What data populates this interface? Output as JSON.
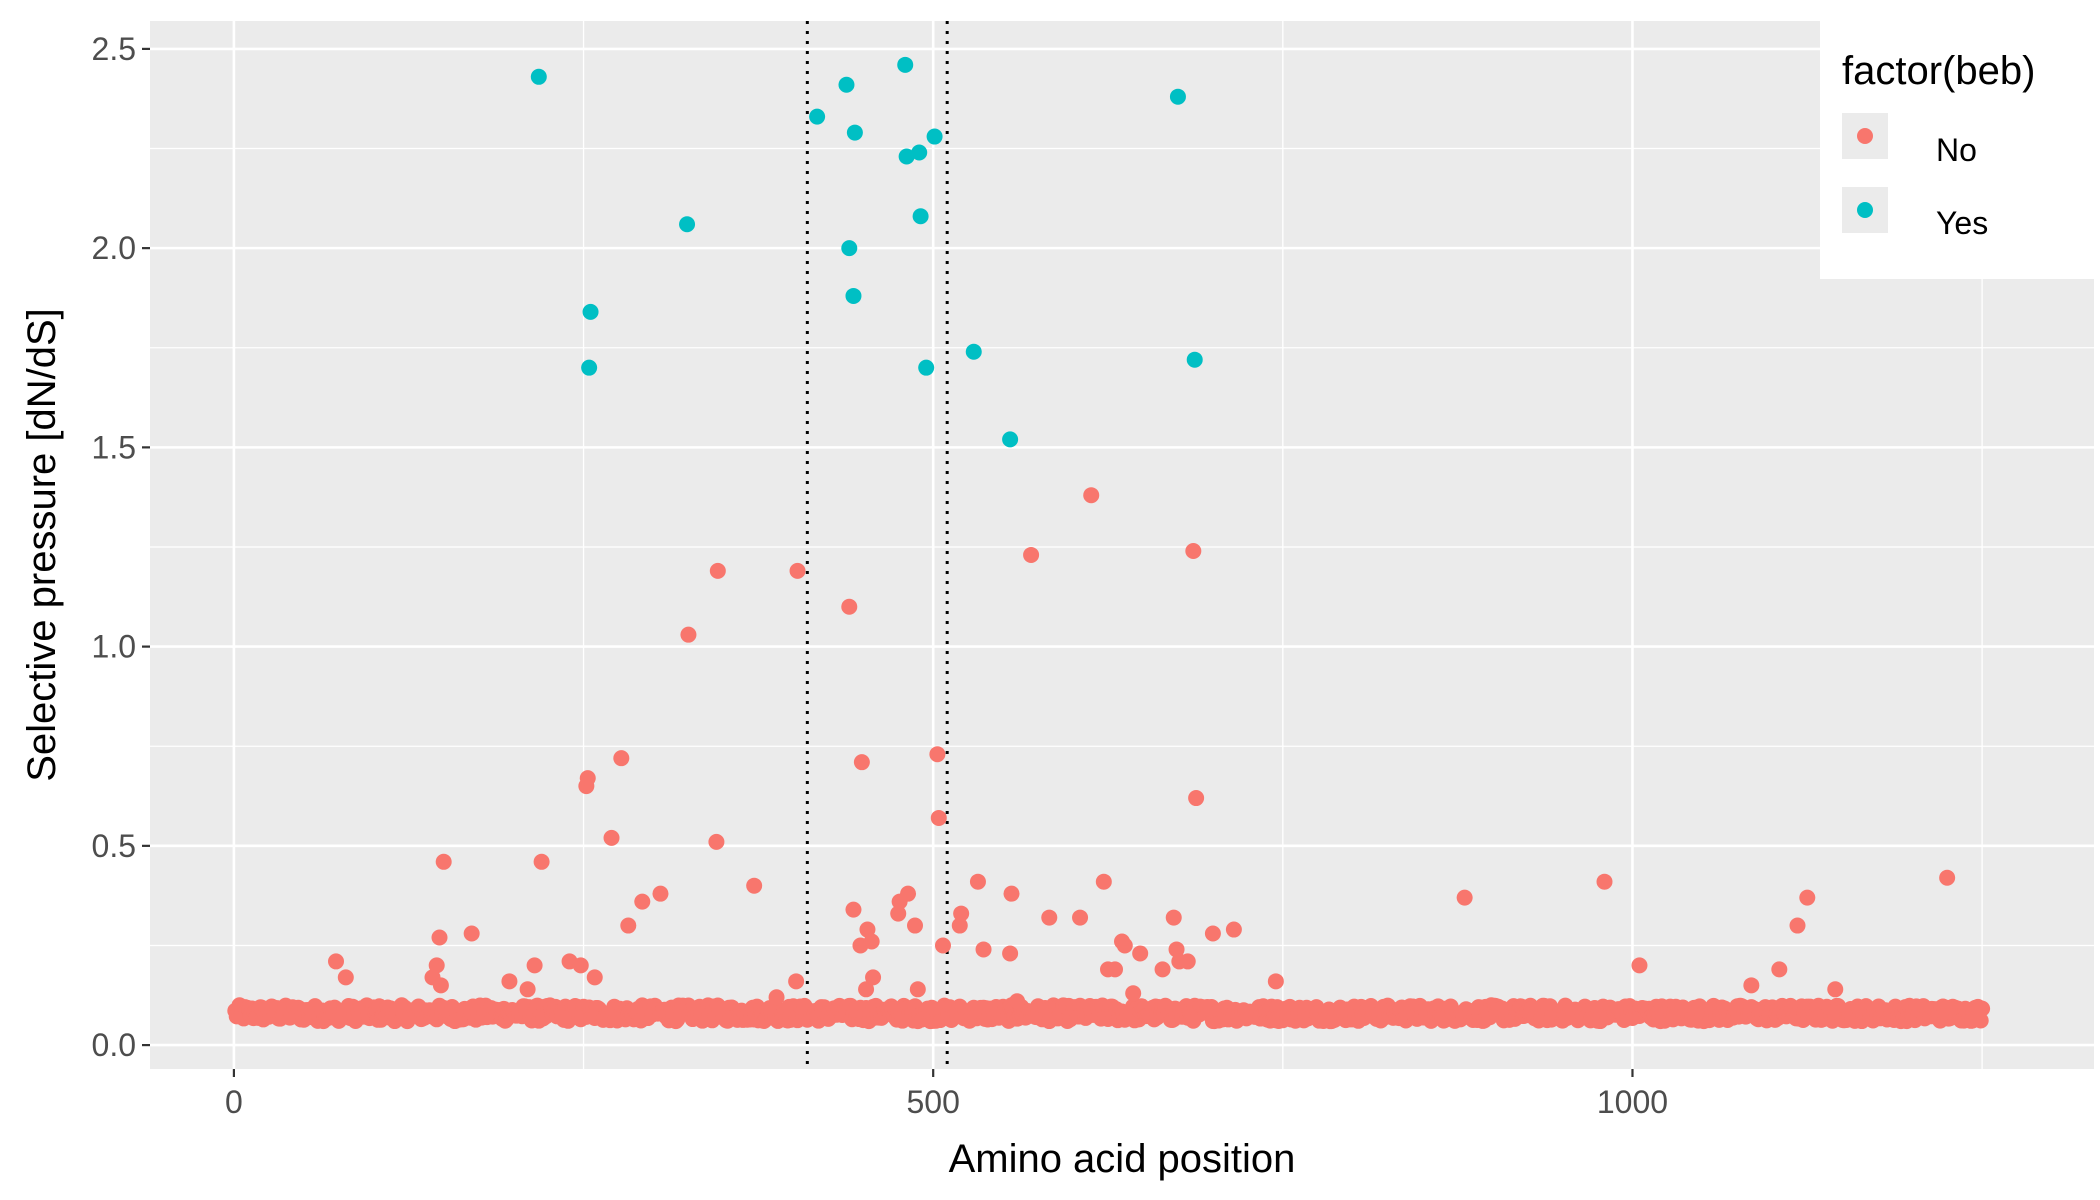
{
  "chart_data": {
    "type": "scatter",
    "title": "",
    "xlabel": "Amino acid position",
    "ylabel": "Selective pressure [dN/dS]",
    "xlim": [
      -60,
      1330
    ],
    "ylim": [
      -0.06,
      2.57
    ],
    "x_ticks": [
      0,
      500,
      1000
    ],
    "x_tick_labels": [
      "0",
      "500",
      "1000"
    ],
    "y_ticks": [
      0.0,
      0.5,
      1.0,
      1.5,
      2.0,
      2.5
    ],
    "y_tick_labels": [
      "0.0",
      "0.5",
      "1.0",
      "1.5",
      "2.0",
      "2.5"
    ],
    "grid": true,
    "vlines": [
      410,
      510
    ],
    "vline_style": "dotted",
    "baseline": {
      "n_positions": 1250,
      "y_min": 0.06,
      "y_max": 0.1
    },
    "legend": {
      "title": "factor(beb)",
      "position": "top-right",
      "entries": [
        {
          "label": "No",
          "color": "#F8766D"
        },
        {
          "label": "Yes",
          "color": "#00BFC4"
        }
      ]
    },
    "series": [
      {
        "name": "No",
        "color": "#F8766D",
        "points": [
          [
            73,
            0.21
          ],
          [
            80,
            0.17
          ],
          [
            150,
            0.46
          ],
          [
            147,
            0.27
          ],
          [
            145,
            0.2
          ],
          [
            142,
            0.17
          ],
          [
            148,
            0.15
          ],
          [
            170,
            0.28
          ],
          [
            197,
            0.16
          ],
          [
            210,
            0.14
          ],
          [
            215,
            0.2
          ],
          [
            220,
            0.46
          ],
          [
            240,
            0.21
          ],
          [
            248,
            0.2
          ],
          [
            252,
            0.65
          ],
          [
            253,
            0.67
          ],
          [
            258,
            0.17
          ],
          [
            270,
            0.52
          ],
          [
            277,
            0.72
          ],
          [
            282,
            0.3
          ],
          [
            292,
            0.36
          ],
          [
            305,
            0.38
          ],
          [
            325,
            1.03
          ],
          [
            345,
            0.51
          ],
          [
            346,
            1.19
          ],
          [
            372,
            0.4
          ],
          [
            388,
            0.12
          ],
          [
            403,
            1.19
          ],
          [
            402,
            0.16
          ],
          [
            440,
            1.1
          ],
          [
            443,
            0.34
          ],
          [
            448,
            0.25
          ],
          [
            449,
            0.71
          ],
          [
            453,
            0.29
          ],
          [
            452,
            0.14
          ],
          [
            456,
            0.26
          ],
          [
            457,
            0.17
          ],
          [
            475,
            0.33
          ],
          [
            476,
            0.36
          ],
          [
            482,
            0.38
          ],
          [
            487,
            0.3
          ],
          [
            489,
            0.14
          ],
          [
            503,
            0.73
          ],
          [
            504,
            0.57
          ],
          [
            507,
            0.25
          ],
          [
            519,
            0.3
          ],
          [
            520,
            0.33
          ],
          [
            532,
            0.41
          ],
          [
            536,
            0.24
          ],
          [
            555,
            0.23
          ],
          [
            556,
            0.38
          ],
          [
            560,
            0.11
          ],
          [
            570,
            1.23
          ],
          [
            583,
            0.32
          ],
          [
            605,
            0.32
          ],
          [
            613,
            1.38
          ],
          [
            622,
            0.41
          ],
          [
            625,
            0.19
          ],
          [
            630,
            0.19
          ],
          [
            635,
            0.26
          ],
          [
            637,
            0.25
          ],
          [
            643,
            0.13
          ],
          [
            648,
            0.23
          ],
          [
            664,
            0.19
          ],
          [
            672,
            0.32
          ],
          [
            674,
            0.24
          ],
          [
            676,
            0.21
          ],
          [
            682,
            0.21
          ],
          [
            686,
            1.24
          ],
          [
            688,
            0.62
          ],
          [
            700,
            0.28
          ],
          [
            715,
            0.29
          ],
          [
            745,
            0.16
          ],
          [
            880,
            0.37
          ],
          [
            980,
            0.41
          ],
          [
            1005,
            0.2
          ],
          [
            1085,
            0.15
          ],
          [
            1105,
            0.19
          ],
          [
            1118,
            0.3
          ],
          [
            1125,
            0.37
          ],
          [
            1145,
            0.14
          ],
          [
            1225,
            0.42
          ]
        ]
      },
      {
        "name": "Yes",
        "color": "#00BFC4",
        "points": [
          [
            218,
            2.43
          ],
          [
            255,
            1.84
          ],
          [
            254,
            1.7
          ],
          [
            324,
            2.06
          ],
          [
            417,
            2.33
          ],
          [
            438,
            2.41
          ],
          [
            440,
            2.0
          ],
          [
            443,
            1.88
          ],
          [
            444,
            2.29
          ],
          [
            480,
            2.46
          ],
          [
            481,
            2.23
          ],
          [
            490,
            2.24
          ],
          [
            491,
            2.08
          ],
          [
            495,
            1.7
          ],
          [
            501,
            2.28
          ],
          [
            529,
            1.74
          ],
          [
            555,
            1.52
          ],
          [
            675,
            2.38
          ],
          [
            687,
            1.72
          ]
        ]
      }
    ]
  }
}
